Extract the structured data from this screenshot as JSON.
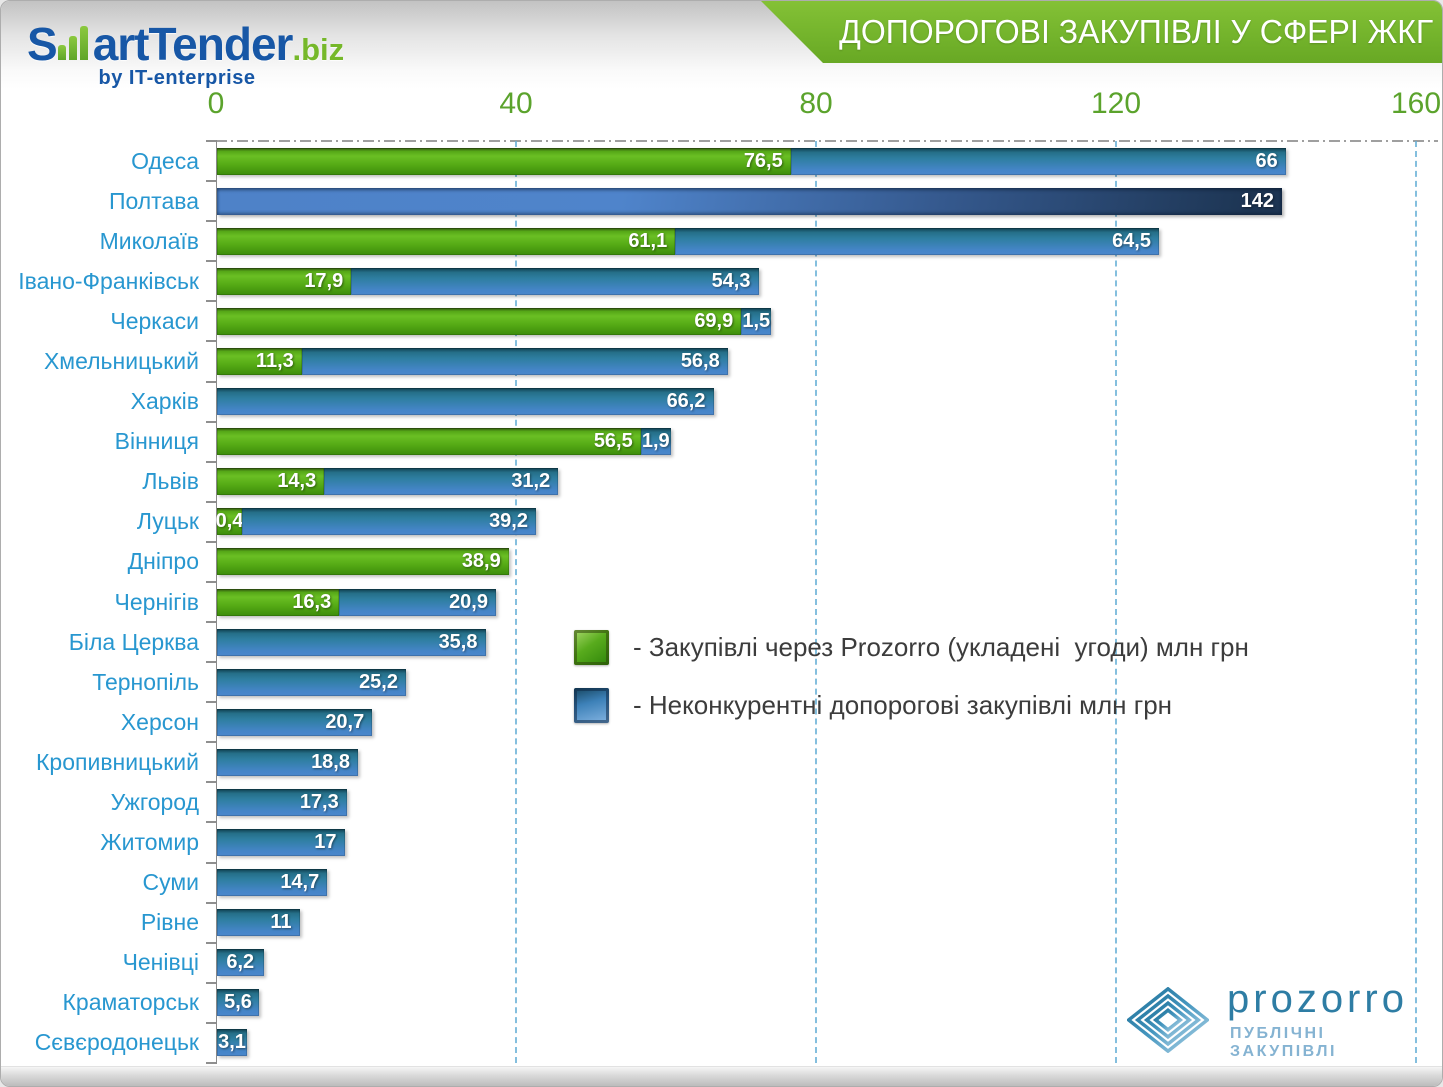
{
  "header": {
    "logo": {
      "part1": "S",
      "part2": "artTender",
      "suffix": ".biz",
      "byline": "by IT-enterprise",
      "bars_icon": "bar-chart-glyph"
    },
    "title": "ДОПОРОГОВІ ЗАКУПІВЛІ У СФЕРІ ЖКГ"
  },
  "brand": {
    "prozorro": {
      "name": "prozorro",
      "subtitle": "ПУБЛІЧНІ ЗАКУПІВЛІ",
      "diamond_icon": "prozorro-diamond-icon"
    }
  },
  "colors": {
    "banner_green": "#76b82c",
    "green_bar": "#5aad1b",
    "blue_bar": "#3a81ad",
    "poltava_dark_bar": "#1d3553",
    "axis_label_green": "#5ba32c",
    "city_label_blue": "#2897d0",
    "gridline_teal": "#66b0d6",
    "legend_text": "#3c3c3c",
    "logo_blue": "#1757a6",
    "logo_green": "#76b82a",
    "prozorro_teal": "#2e7da4",
    "prozorro_light_blue": "#85b3d2"
  },
  "chart_data": {
    "type": "bar",
    "orientation": "horizontal",
    "stacked": true,
    "grid": "vertical-dashed",
    "xlim": [
      0,
      160
    ],
    "x_ticks": [
      0,
      40,
      80,
      120,
      160
    ],
    "unit": "млн грн",
    "series_names": [
      "Закупівлі через Prozorro (укладені угоди)",
      "Неконкурентні допорогові закупівлі"
    ],
    "legend": [
      {
        "swatch": "green",
        "label": "- Закупівлі через Prozorro (укладені  угоди) млн грн"
      },
      {
        "swatch": "blue",
        "label": "- Неконкурентні допорогові закупівлі млн грн"
      }
    ],
    "rows": [
      {
        "city": "Одеса",
        "prozorro": 76.5,
        "prozorro_label": "76,5",
        "noncompetitive": 66,
        "noncompetitive_label": "66"
      },
      {
        "city": "Полтава",
        "prozorro": null,
        "prozorro_label": "",
        "noncompetitive": 142,
        "noncompetitive_label": "142",
        "highlight": true
      },
      {
        "city": "Миколаїв",
        "prozorro": 61.1,
        "prozorro_label": "61,1",
        "noncompetitive": 64.5,
        "noncompetitive_label": "64,5"
      },
      {
        "city": "Івано-Франківськ",
        "prozorro": 17.9,
        "prozorro_label": "17,9",
        "noncompetitive": 54.3,
        "noncompetitive_label": "54,3"
      },
      {
        "city": "Черкаси",
        "prozorro": 69.9,
        "prozorro_label": "69,9",
        "noncompetitive": 1.5,
        "noncompetitive_label": "1,5"
      },
      {
        "city": "Хмельницький",
        "prozorro": 11.3,
        "prozorro_label": "11,3",
        "noncompetitive": 56.8,
        "noncompetitive_label": "56,8"
      },
      {
        "city": "Харків",
        "prozorro": null,
        "prozorro_label": "",
        "noncompetitive": 66.2,
        "noncompetitive_label": "66,2"
      },
      {
        "city": "Вінниця",
        "prozorro": 56.5,
        "prozorro_label": "56,5",
        "noncompetitive": 1.9,
        "noncompetitive_label": "1,9"
      },
      {
        "city": "Львів",
        "prozorro": 14.3,
        "prozorro_label": "14,3",
        "noncompetitive": 31.2,
        "noncompetitive_label": "31,2"
      },
      {
        "city": "Луцьк",
        "prozorro": 0.4,
        "prozorro_label": "0,4",
        "noncompetitive": 39.2,
        "noncompetitive_label": "39,2"
      },
      {
        "city": "Дніпро",
        "prozorro": 38.9,
        "prozorro_label": "38,9",
        "noncompetitive": null,
        "noncompetitive_label": ""
      },
      {
        "city": "Чернігів",
        "prozorro": 16.3,
        "prozorro_label": "16,3",
        "noncompetitive": 20.9,
        "noncompetitive_label": "20,9"
      },
      {
        "city": "Біла Церква",
        "prozorro": null,
        "prozorro_label": "",
        "noncompetitive": 35.8,
        "noncompetitive_label": "35,8"
      },
      {
        "city": "Тернопіль",
        "prozorro": null,
        "prozorro_label": "",
        "noncompetitive": 25.2,
        "noncompetitive_label": "25,2"
      },
      {
        "city": "Херсон",
        "prozorro": null,
        "prozorro_label": "",
        "noncompetitive": 20.7,
        "noncompetitive_label": "20,7"
      },
      {
        "city": "Кропивницький",
        "prozorro": null,
        "prozorro_label": "",
        "noncompetitive": 18.8,
        "noncompetitive_label": "18,8"
      },
      {
        "city": "Ужгород",
        "prozorro": null,
        "prozorro_label": "",
        "noncompetitive": 17.3,
        "noncompetitive_label": "17,3"
      },
      {
        "city": "Житомир",
        "prozorro": null,
        "prozorro_label": "",
        "noncompetitive": 17,
        "noncompetitive_label": "17"
      },
      {
        "city": "Суми",
        "prozorro": null,
        "prozorro_label": "",
        "noncompetitive": 14.7,
        "noncompetitive_label": "14,7"
      },
      {
        "city": "Рівне",
        "prozorro": null,
        "prozorro_label": "",
        "noncompetitive": 11,
        "noncompetitive_label": "11"
      },
      {
        "city": "Ченівці",
        "prozorro": null,
        "prozorro_label": "",
        "noncompetitive": 6.2,
        "noncompetitive_label": "6,2"
      },
      {
        "city": "Краматорськ",
        "prozorro": null,
        "prozorro_label": "",
        "noncompetitive": 5.6,
        "noncompetitive_label": "5,6"
      },
      {
        "city": "Сєвєродонецьк",
        "prozorro": null,
        "prozorro_label": "",
        "noncompetitive": 3.1,
        "noncompetitive_label": "3,1"
      }
    ]
  }
}
